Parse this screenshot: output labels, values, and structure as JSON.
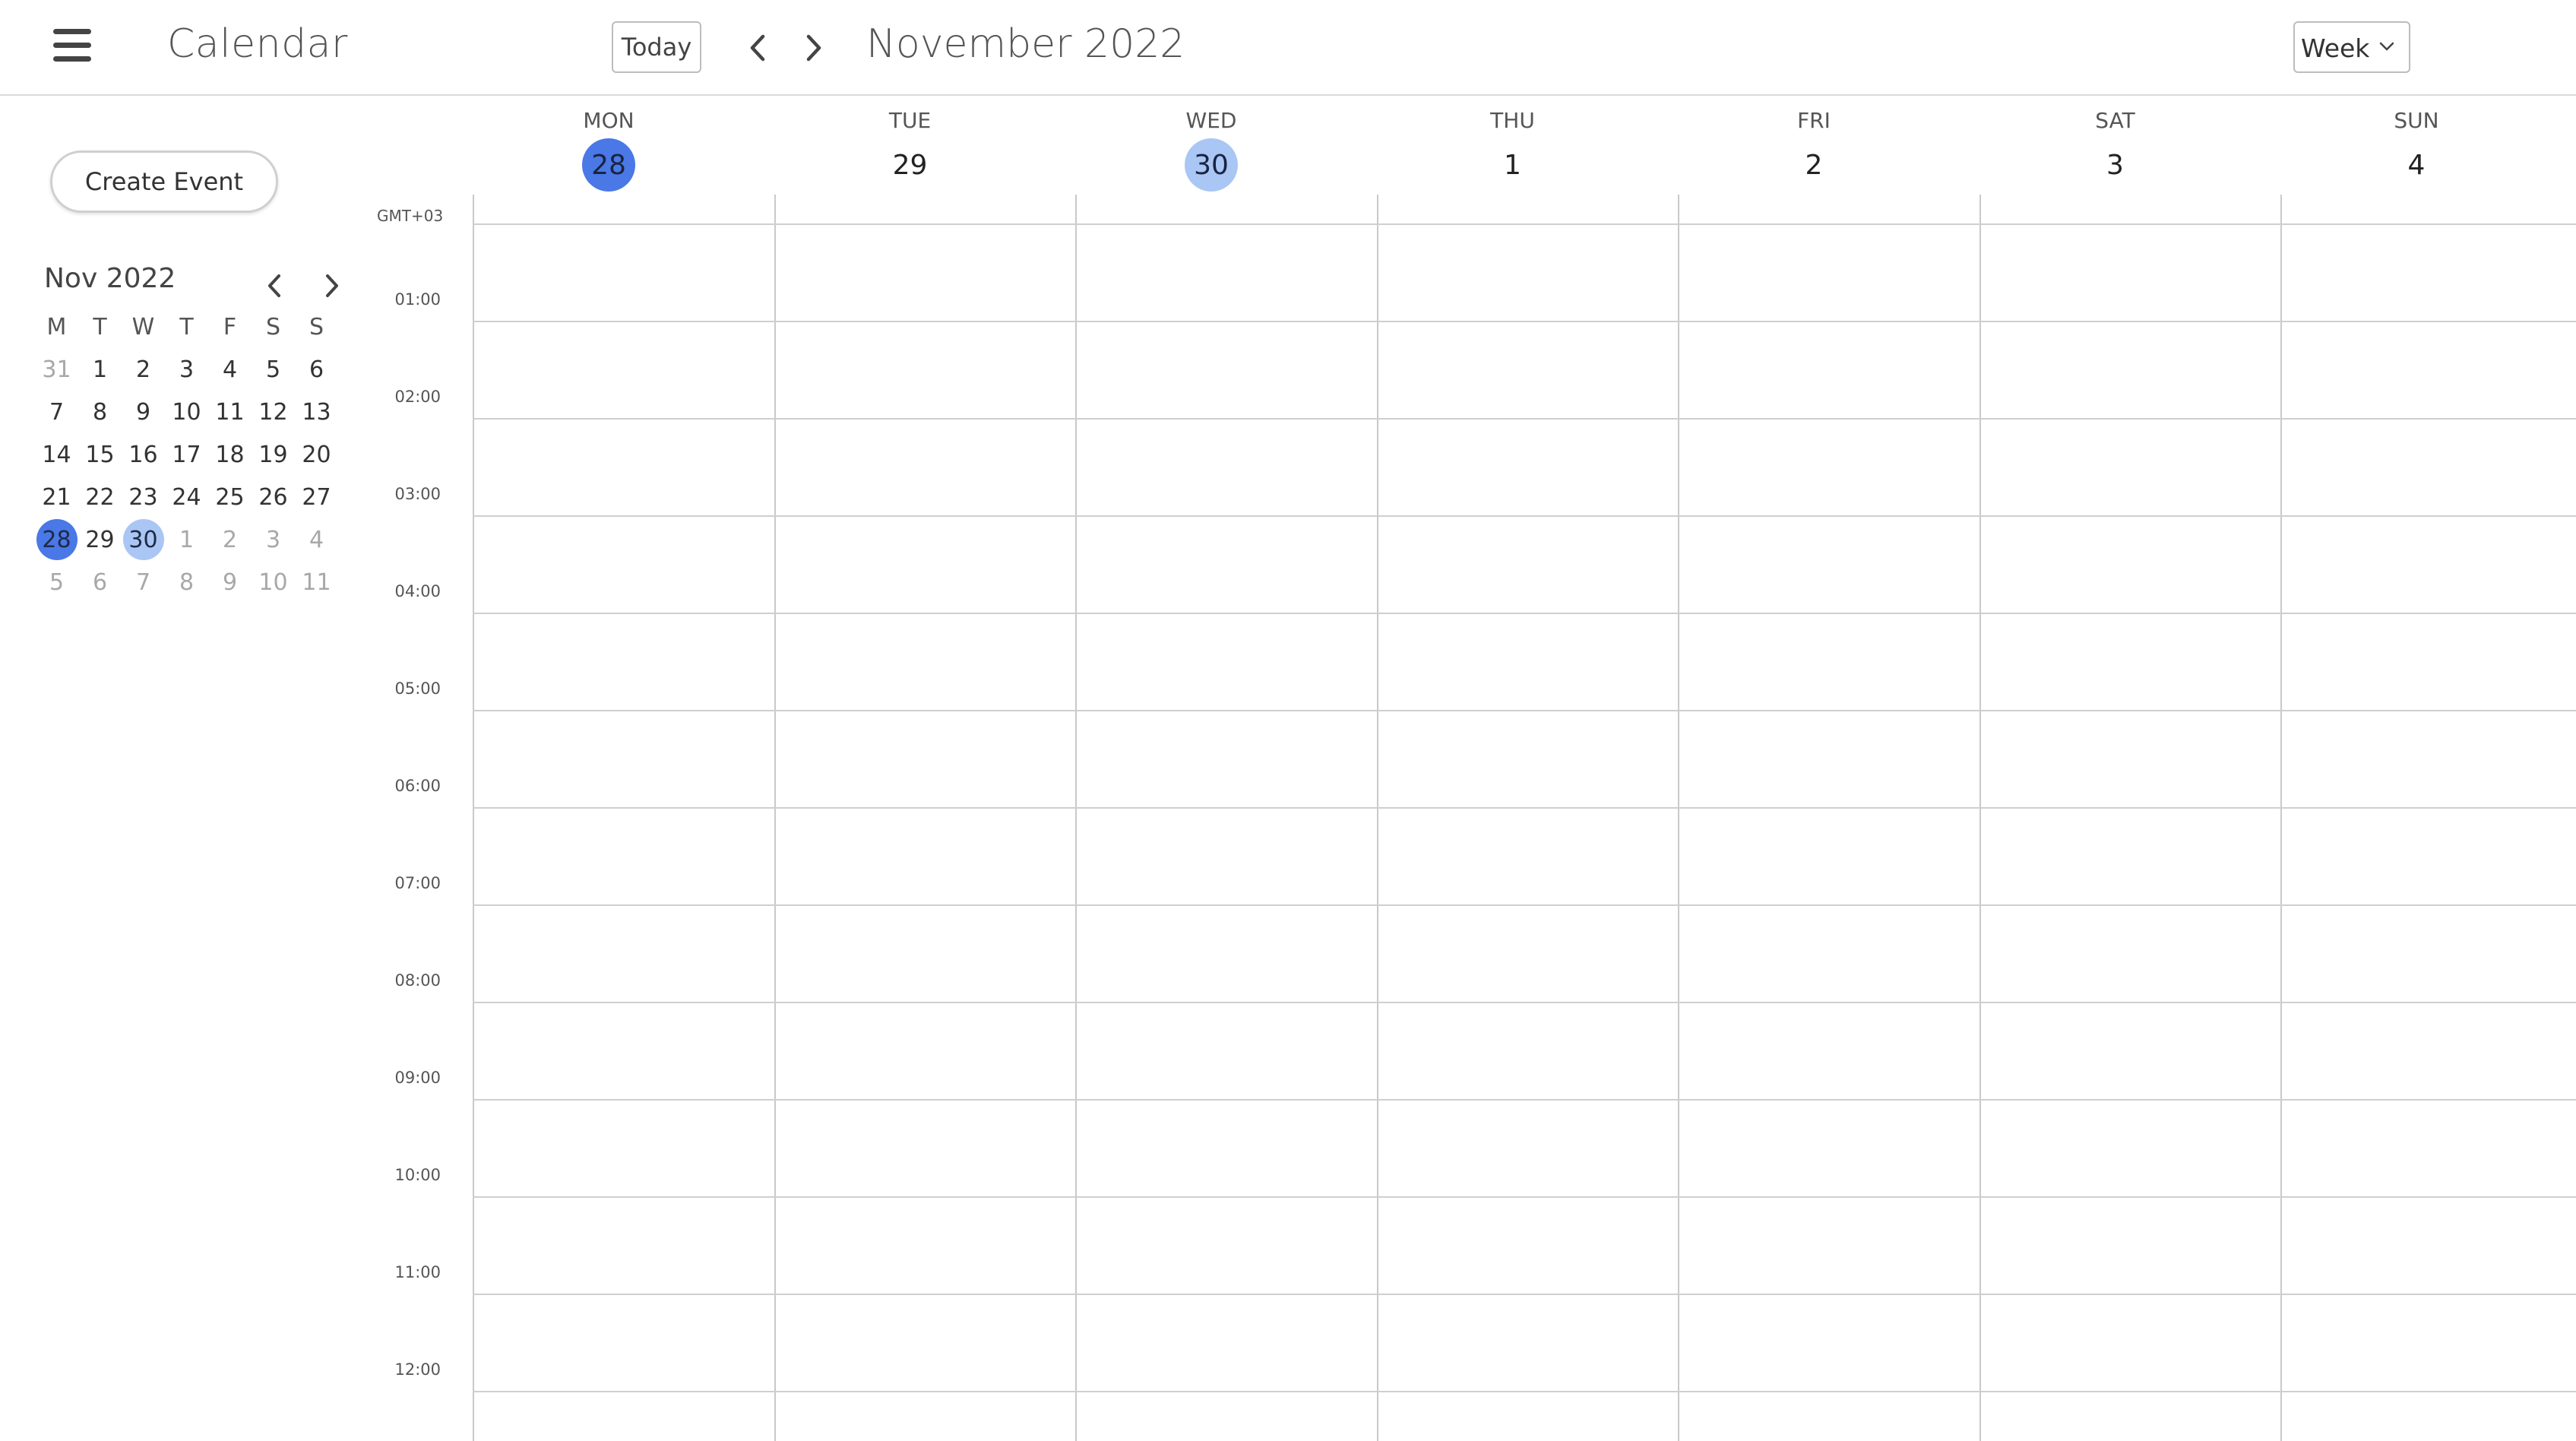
{
  "header": {
    "app_title": "Calendar",
    "today_label": "Today",
    "month_title": "November 2022",
    "view_label": "Week"
  },
  "sidebar": {
    "create_event_label": "Create Event",
    "mini_calendar": {
      "title": "Nov 2022",
      "weekdays": [
        "M",
        "T",
        "W",
        "T",
        "F",
        "S",
        "S"
      ],
      "weeks": [
        [
          {
            "d": "31",
            "dim": true
          },
          {
            "d": "1"
          },
          {
            "d": "2"
          },
          {
            "d": "3"
          },
          {
            "d": "4"
          },
          {
            "d": "5"
          },
          {
            "d": "6"
          }
        ],
        [
          {
            "d": "7"
          },
          {
            "d": "8"
          },
          {
            "d": "9"
          },
          {
            "d": "10"
          },
          {
            "d": "11"
          },
          {
            "d": "12"
          },
          {
            "d": "13"
          }
        ],
        [
          {
            "d": "14"
          },
          {
            "d": "15"
          },
          {
            "d": "16"
          },
          {
            "d": "17"
          },
          {
            "d": "18"
          },
          {
            "d": "19"
          },
          {
            "d": "20"
          }
        ],
        [
          {
            "d": "21"
          },
          {
            "d": "22"
          },
          {
            "d": "23"
          },
          {
            "d": "24"
          },
          {
            "d": "25"
          },
          {
            "d": "26"
          },
          {
            "d": "27"
          }
        ],
        [
          {
            "d": "28",
            "today": true
          },
          {
            "d": "29"
          },
          {
            "d": "30",
            "selected": true
          },
          {
            "d": "1",
            "dim": true
          },
          {
            "d": "2",
            "dim": true
          },
          {
            "d": "3",
            "dim": true
          },
          {
            "d": "4",
            "dim": true
          }
        ],
        [
          {
            "d": "5",
            "dim": true
          },
          {
            "d": "6",
            "dim": true
          },
          {
            "d": "7",
            "dim": true
          },
          {
            "d": "8",
            "dim": true
          },
          {
            "d": "9",
            "dim": true
          },
          {
            "d": "10",
            "dim": true
          },
          {
            "d": "11",
            "dim": true
          }
        ]
      ]
    }
  },
  "week": {
    "timezone": "GMT+03",
    "days": [
      {
        "name": "MON",
        "num": "28",
        "today": true
      },
      {
        "name": "TUE",
        "num": "29"
      },
      {
        "name": "WED",
        "num": "30",
        "selected": true
      },
      {
        "name": "THU",
        "num": "1"
      },
      {
        "name": "FRI",
        "num": "2"
      },
      {
        "name": "SAT",
        "num": "3"
      },
      {
        "name": "SUN",
        "num": "4"
      }
    ],
    "hours": [
      "01:00",
      "02:00",
      "03:00",
      "04:00",
      "05:00",
      "06:00",
      "07:00",
      "08:00",
      "09:00",
      "10:00",
      "11:00",
      "12:00"
    ]
  },
  "colors": {
    "today_circle": "#4a78e6",
    "selected_circle": "#a9c6f5",
    "grid_line": "#cfcfcf"
  },
  "icons": {
    "menu": "hamburger-menu-icon",
    "prev": "chevron-left-icon",
    "next": "chevron-right-icon",
    "dropdown": "chevron-down-icon"
  }
}
